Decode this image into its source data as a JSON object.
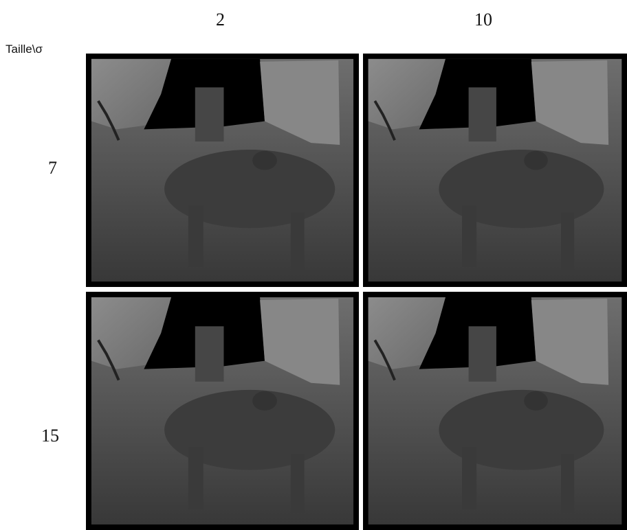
{
  "header": {
    "corner": "Taille\\σ",
    "columns": [
      "2",
      "10"
    ]
  },
  "rows": [
    "7",
    "15"
  ]
}
